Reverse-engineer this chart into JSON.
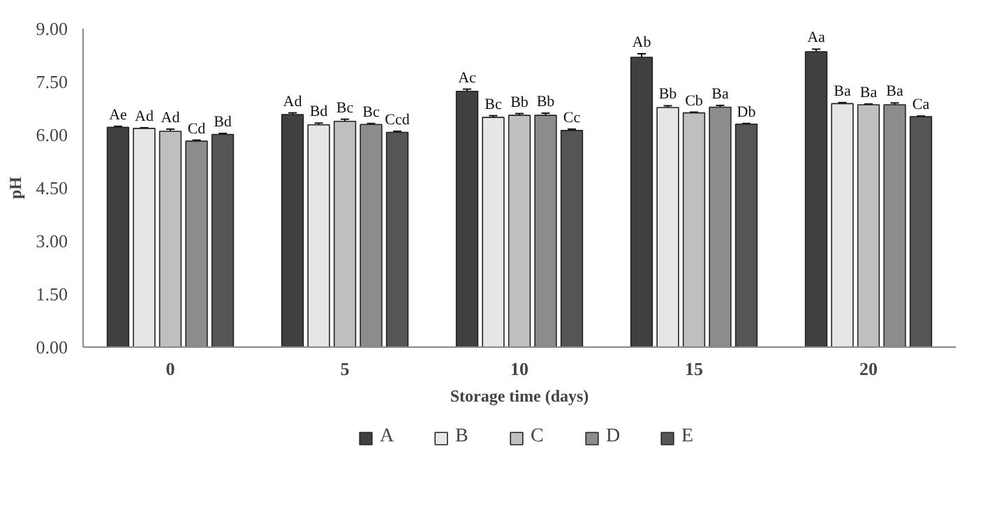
{
  "chart_data": {
    "type": "bar",
    "xlabel": "Storage time (days)",
    "ylabel": "pH",
    "categories": [
      "0",
      "5",
      "10",
      "15",
      "20"
    ],
    "ylim": [
      0,
      9
    ],
    "yticks": [
      {
        "value": 0,
        "label": "0.00"
      },
      {
        "value": 1.5,
        "label": "1.50"
      },
      {
        "value": 3,
        "label": "3.00"
      },
      {
        "value": 4.5,
        "label": "4.50"
      },
      {
        "value": 6,
        "label": "6.00"
      },
      {
        "value": 7.5,
        "label": "7.50"
      },
      {
        "value": 9,
        "label": "9.00"
      }
    ],
    "grid": false,
    "legend": "bottom",
    "series": [
      {
        "name": "A",
        "color": "#404040",
        "values": [
          6.21,
          6.57,
          7.23,
          8.19,
          8.35
        ],
        "errors": [
          0.03,
          0.05,
          0.06,
          0.1,
          0.07
        ],
        "value_labels": [
          "Ae",
          "Ad",
          "Ac",
          "Ab",
          "Aa"
        ]
      },
      {
        "name": "B",
        "color": "#e6e6e6",
        "values": [
          6.18,
          6.28,
          6.49,
          6.77,
          6.88
        ],
        "errors": [
          0.02,
          0.05,
          0.05,
          0.05,
          0.03
        ],
        "value_labels": [
          "Ad",
          "Bd",
          "Bc",
          "Bb",
          "Ba"
        ]
      },
      {
        "name": "C",
        "color": "#bfbfbf",
        "values": [
          6.1,
          6.38,
          6.55,
          6.62,
          6.85
        ],
        "errors": [
          0.06,
          0.06,
          0.05,
          0.02,
          0.02
        ],
        "value_labels": [
          "Ad",
          "Bc",
          "Bb",
          "Cb",
          "Ba"
        ]
      },
      {
        "name": "D",
        "color": "#8c8c8c",
        "values": [
          5.82,
          6.29,
          6.55,
          6.78,
          6.85
        ],
        "errors": [
          0.03,
          0.03,
          0.06,
          0.05,
          0.05
        ],
        "value_labels": [
          "Cd",
          "Bc",
          "Bb",
          "Ba",
          "Ba"
        ]
      },
      {
        "name": "E",
        "color": "#555555",
        "values": [
          6.01,
          6.07,
          6.12,
          6.3,
          6.51
        ],
        "errors": [
          0.03,
          0.03,
          0.04,
          0.02,
          0.02
        ],
        "value_labels": [
          "Bd",
          "Ccd",
          "Cc",
          "Db",
          "Ca"
        ]
      }
    ]
  }
}
